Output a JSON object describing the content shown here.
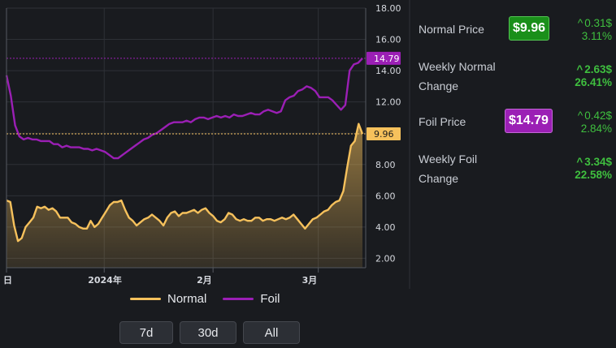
{
  "chart_data": {
    "type": "line",
    "ylim": [
      1.4,
      18.0
    ],
    "yticks": [
      "2.00",
      "4.00",
      "6.00",
      "8.00",
      "10.00",
      "12.00",
      "14.00",
      "16.00",
      "18.00"
    ],
    "ytick_values": [
      2,
      4,
      6,
      8,
      10,
      12,
      14,
      16,
      18
    ],
    "xticks": [
      {
        "label": "日",
        "pos": 0.0
      },
      {
        "label": "2024年",
        "pos": 0.272
      },
      {
        "label": "2月",
        "pos": 0.575
      },
      {
        "label": "3月",
        "pos": 0.868
      }
    ],
    "series": [
      {
        "name": "Normal",
        "color": "#f6c15c",
        "area": true,
        "last_label": "9.96",
        "last_value": 9.96,
        "values": [
          5.7,
          5.6,
          4.1,
          3.1,
          3.3,
          4.0,
          4.3,
          4.6,
          5.3,
          5.2,
          5.3,
          5.1,
          5.2,
          5.0,
          4.6,
          4.6,
          4.6,
          4.3,
          4.2,
          4.0,
          3.9,
          3.9,
          4.4,
          4.0,
          4.2,
          4.6,
          5.0,
          5.4,
          5.6,
          5.6,
          5.7,
          5.1,
          4.6,
          4.4,
          4.1,
          4.3,
          4.5,
          4.6,
          4.8,
          4.6,
          4.4,
          4.1,
          4.6,
          4.9,
          5.0,
          4.7,
          4.9,
          4.9,
          5.0,
          5.1,
          4.9,
          5.1,
          5.2,
          4.9,
          4.7,
          4.4,
          4.3,
          4.5,
          4.9,
          4.8,
          4.5,
          4.4,
          4.5,
          4.4,
          4.4,
          4.6,
          4.6,
          4.4,
          4.5,
          4.5,
          4.4,
          4.5,
          4.6,
          4.5,
          4.6,
          4.8,
          4.5,
          4.2,
          3.9,
          4.2,
          4.5,
          4.6,
          4.8,
          5.0,
          5.1,
          5.4,
          5.6,
          5.7,
          6.3,
          7.8,
          9.2,
          9.5,
          10.6,
          9.96
        ]
      },
      {
        "name": "Foil",
        "color": "#9b1fb5",
        "area": false,
        "last_label": "14.79",
        "last_value": 14.79,
        "values": [
          13.7,
          12.4,
          10.5,
          9.8,
          9.6,
          9.7,
          9.6,
          9.6,
          9.5,
          9.5,
          9.5,
          9.3,
          9.3,
          9.1,
          9.2,
          9.1,
          9.1,
          9.1,
          9.0,
          9.0,
          8.9,
          9.0,
          8.9,
          8.8,
          8.6,
          8.4,
          8.4,
          8.6,
          8.8,
          9.0,
          9.2,
          9.4,
          9.6,
          9.7,
          9.9,
          10.0,
          10.2,
          10.4,
          10.6,
          10.7,
          10.7,
          10.7,
          10.8,
          10.7,
          10.9,
          11.0,
          11.0,
          10.9,
          11.0,
          11.1,
          11.0,
          11.1,
          11.0,
          11.2,
          11.1,
          11.1,
          11.2,
          11.3,
          11.2,
          11.2,
          11.4,
          11.5,
          11.4,
          11.3,
          11.4,
          12.1,
          12.3,
          12.4,
          12.7,
          12.8,
          13.0,
          12.9,
          12.7,
          12.3,
          12.3,
          12.3,
          12.1,
          11.8,
          11.5,
          11.8,
          14.0,
          14.4,
          14.5,
          14.79
        ]
      }
    ],
    "legend": [
      {
        "label": "Normal",
        "color": "#f6c15c"
      },
      {
        "label": "Foil",
        "color": "#9b1fb5"
      }
    ]
  },
  "range_buttons": [
    {
      "label": "7d"
    },
    {
      "label": "30d"
    },
    {
      "label": "All"
    }
  ],
  "stats": {
    "normal_price": {
      "label": "Normal Price",
      "value": "$9.96",
      "badge_color": "#1a8f1a",
      "delta_abs": "0.31$",
      "delta_pct": "3.11%"
    },
    "weekly_normal": {
      "label_line1": "Weekly Normal",
      "label_line2": "Change",
      "delta_abs": "2.63$",
      "delta_pct": "26.41%"
    },
    "foil_price": {
      "label": "Foil Price",
      "value": "$14.79",
      "badge_color": "#9b1fb5",
      "delta_abs": "0.42$",
      "delta_pct": "2.84%"
    },
    "weekly_foil": {
      "label_line1": "Weekly Foil",
      "label_line2": "Change",
      "delta_abs": "3.34$",
      "delta_pct": "22.58%"
    }
  }
}
